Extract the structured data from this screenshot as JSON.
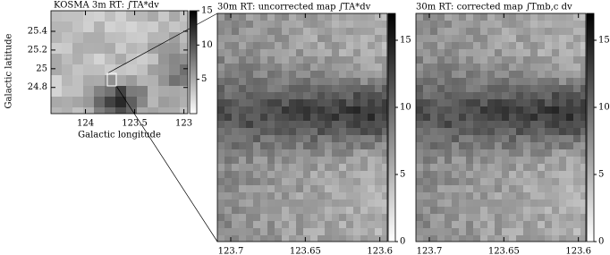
{
  "panels": [
    {
      "title": "KOSMA 3m RT: ∫TA*dv",
      "xlabel": "Galactic longitude",
      "ylabel": "Galactic latitude",
      "xlim": [
        124.35,
        122.96
      ],
      "xticks": [
        124,
        123.5,
        123
      ],
      "ylim": [
        24.52,
        25.62
      ],
      "yticks": [
        24.8,
        25,
        25.2,
        25.4
      ],
      "colorbar": {
        "lim": [
          0,
          15
        ],
        "ticks": [
          5,
          10,
          15
        ]
      }
    },
    {
      "title": "30m RT: uncorrected map ∫TA*dv",
      "xlim": [
        123.709,
        123.595
      ],
      "xticks": [
        123.7,
        123.65,
        123.6
      ],
      "colorbar": {
        "lim": [
          0,
          17
        ],
        "ticks": [
          0,
          5,
          10,
          15
        ]
      }
    },
    {
      "title": "30m RT: corrected map ∫Tmb,c dv",
      "xlim": [
        123.709,
        123.595
      ],
      "xticks": [
        123.7,
        123.65,
        123.6
      ],
      "colorbar": {
        "lim": [
          0,
          17
        ],
        "ticks": [
          0,
          5,
          10,
          15
        ]
      }
    }
  ]
}
